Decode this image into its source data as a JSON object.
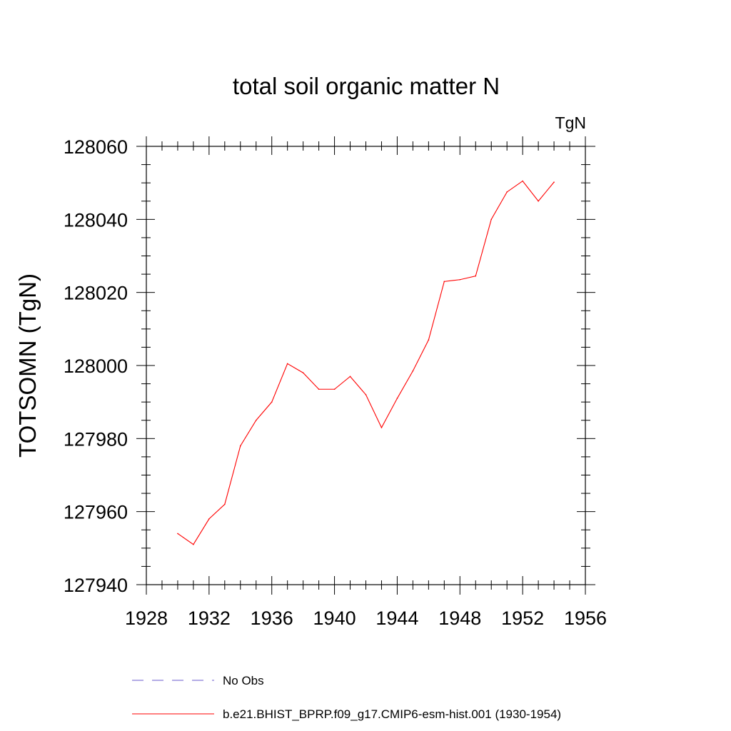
{
  "chart_data": {
    "type": "line",
    "title": "total soil organic matter N",
    "units_label": "TgN",
    "ylabel": "TOTSOMN  (TgN)",
    "xlabel": "",
    "xlim": [
      1928,
      1956
    ],
    "ylim": [
      127940,
      128060
    ],
    "x_ticks": [
      1928,
      1932,
      1936,
      1940,
      1944,
      1948,
      1952,
      1956
    ],
    "y_ticks": [
      127940,
      127960,
      127980,
      128000,
      128020,
      128040,
      128060
    ],
    "grid": false,
    "legend_position": "bottom",
    "series": [
      {
        "name": "No Obs",
        "color": "#6a5acd",
        "style": "dashed",
        "x": [],
        "values": []
      },
      {
        "name": "b.e21.BHIST_BPRP.f09_g17.CMIP6-esm-hist.001 (1930-1954)",
        "color": "#ff0000",
        "style": "solid",
        "x": [
          1930,
          1931,
          1932,
          1933,
          1934,
          1935,
          1936,
          1937,
          1938,
          1939,
          1940,
          1941,
          1942,
          1943,
          1944,
          1945,
          1946,
          1947,
          1948,
          1949,
          1950,
          1951,
          1952,
          1953,
          1954
        ],
        "values": [
          127954,
          127951,
          127958,
          127962,
          127978,
          127985,
          127990,
          128000.5,
          127998,
          127993.5,
          127993.5,
          127997,
          127992,
          127983,
          127991,
          127998.5,
          128007,
          128023,
          128023.5,
          128024.5,
          128040,
          128047.5,
          128050.5,
          128045,
          128050.2
        ]
      }
    ]
  }
}
